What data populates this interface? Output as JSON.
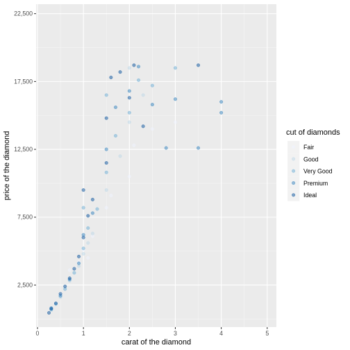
{
  "chart_data": {
    "type": "scatter",
    "title": "",
    "xlabel": "carat of the diamond",
    "ylabel": "price of the diamond",
    "xlim": [
      -0.03,
      5.2
    ],
    "ylim": [
      -600,
      23200
    ],
    "x_ticks": [
      0,
      1,
      2,
      3,
      4,
      5
    ],
    "x_tick_labels": [
      "0",
      "1",
      "2",
      "3",
      "4",
      "5"
    ],
    "y_ticks": [
      2500,
      7500,
      12500,
      17500,
      22500
    ],
    "y_tick_labels": [
      "2,500",
      "7,500",
      "12,500",
      "17,500",
      "22,500"
    ],
    "grid": true,
    "legend": {
      "title": "cut of diamonds",
      "position": "right",
      "entries": [
        "Fair",
        "Good",
        "Very Good",
        "Premium",
        "Ideal"
      ]
    },
    "series": [
      {
        "name": "Fair",
        "color": "#eff3ff",
        "alpha": 0.5,
        "points": [
          [
            0.7,
            3600
          ],
          [
            0.9,
            4200
          ],
          [
            1.0,
            5100
          ],
          [
            1.2,
            6100
          ],
          [
            1.5,
            8200
          ],
          [
            2.0,
            10500
          ],
          [
            2.5,
            14000
          ],
          [
            3.0,
            14500
          ],
          [
            0.5,
            1800
          ],
          [
            1.1,
            4500
          ],
          [
            1.6,
            9100
          ],
          [
            2.1,
            12800
          ]
        ]
      },
      {
        "name": "Good",
        "color": "#bdd7e7",
        "alpha": 0.5,
        "points": [
          [
            0.3,
            650
          ],
          [
            0.5,
            1600
          ],
          [
            0.7,
            2800
          ],
          [
            1.0,
            4800
          ],
          [
            1.2,
            6300
          ],
          [
            1.5,
            9500
          ],
          [
            2.0,
            14500
          ],
          [
            2.3,
            16500
          ],
          [
            1.1,
            5600
          ],
          [
            0.9,
            3900
          ],
          [
            1.8,
            12000
          ],
          [
            2.0,
            18500
          ]
        ]
      },
      {
        "name": "Very Good",
        "color": "#6baed6",
        "alpha": 0.5,
        "points": [
          [
            0.3,
            700
          ],
          [
            0.4,
            1100
          ],
          [
            0.6,
            2200
          ],
          [
            0.8,
            3400
          ],
          [
            1.0,
            5200
          ],
          [
            1.1,
            6700
          ],
          [
            1.3,
            8100
          ],
          [
            1.5,
            10800
          ],
          [
            1.7,
            13500
          ],
          [
            2.0,
            15200
          ],
          [
            2.2,
            17600
          ],
          [
            1.0,
            8200
          ],
          [
            1.5,
            16500
          ],
          [
            2.5,
            17200
          ],
          [
            3.0,
            18500
          ]
        ]
      },
      {
        "name": "Premium",
        "color": "#3182bd",
        "alpha": 0.5,
        "points": [
          [
            0.3,
            800
          ],
          [
            0.5,
            1700
          ],
          [
            0.7,
            2900
          ],
          [
            0.9,
            4100
          ],
          [
            1.0,
            6200
          ],
          [
            1.2,
            7800
          ],
          [
            1.5,
            12500
          ],
          [
            1.7,
            15600
          ],
          [
            2.0,
            16800
          ],
          [
            2.2,
            18600
          ],
          [
            2.5,
            15800
          ],
          [
            2.8,
            12600
          ],
          [
            3.0,
            16200
          ],
          [
            3.5,
            12600
          ],
          [
            4.0,
            15200
          ],
          [
            4.0,
            16000
          ]
        ]
      },
      {
        "name": "Ideal",
        "color": "#08519c",
        "alpha": 0.5,
        "points": [
          [
            0.25,
            450
          ],
          [
            0.3,
            750
          ],
          [
            0.4,
            1150
          ],
          [
            0.5,
            1850
          ],
          [
            0.6,
            2400
          ],
          [
            0.7,
            3000
          ],
          [
            0.8,
            3700
          ],
          [
            0.9,
            4600
          ],
          [
            1.0,
            6000
          ],
          [
            1.0,
            9500
          ],
          [
            1.1,
            7600
          ],
          [
            1.2,
            8800
          ],
          [
            1.5,
            11500
          ],
          [
            1.5,
            14800
          ],
          [
            1.6,
            17800
          ],
          [
            1.8,
            18200
          ],
          [
            2.0,
            16300
          ],
          [
            2.1,
            18700
          ],
          [
            2.3,
            14200
          ],
          [
            3.5,
            18700
          ]
        ]
      }
    ]
  }
}
